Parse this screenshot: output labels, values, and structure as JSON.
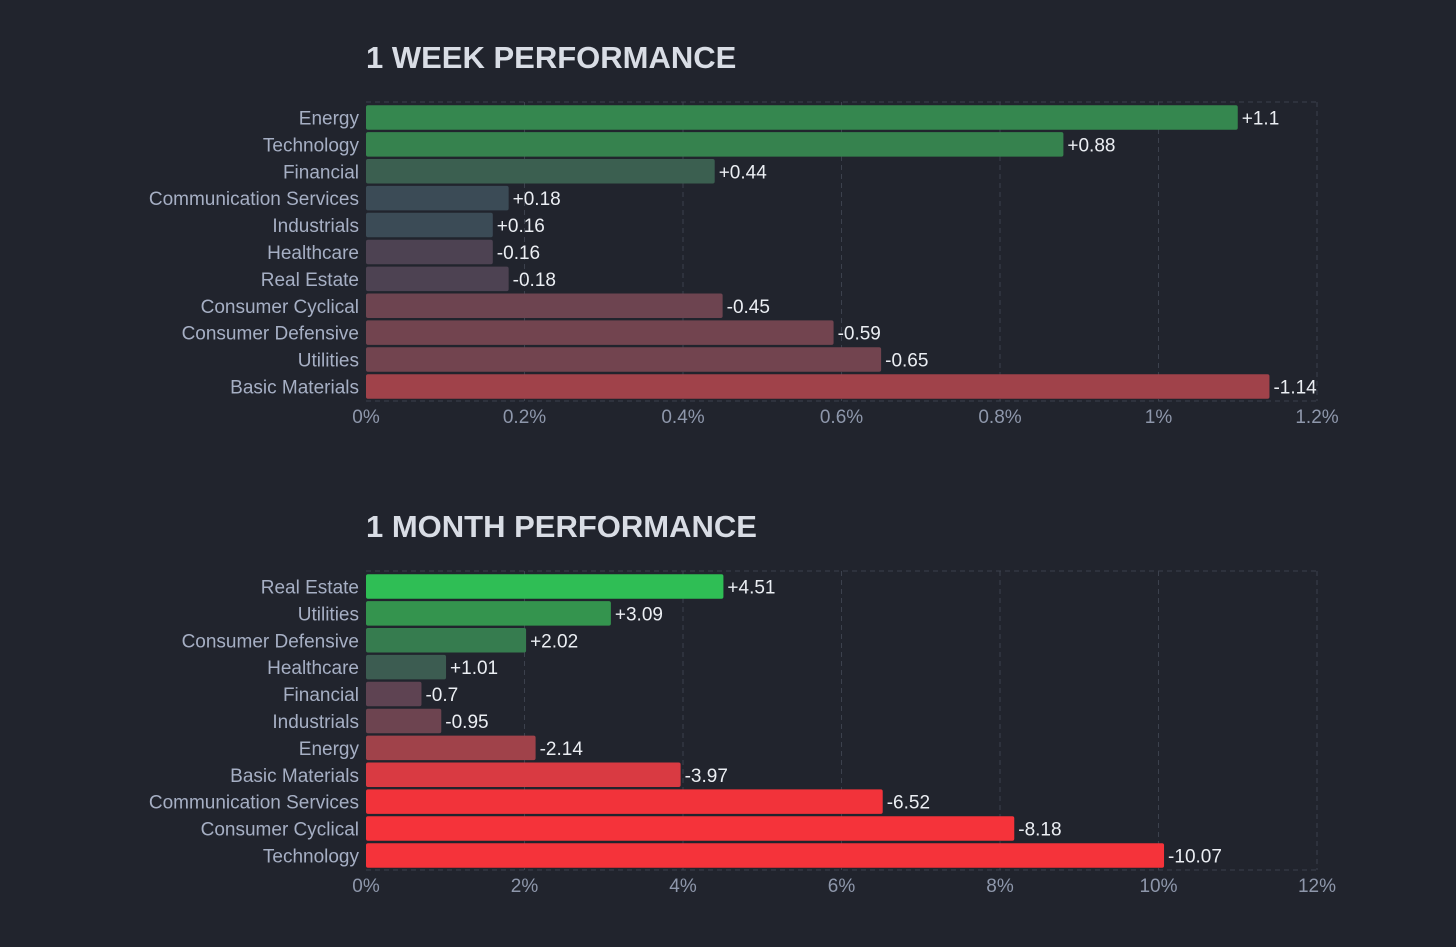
{
  "chart_data": [
    {
      "type": "bar",
      "orientation": "horizontal",
      "title": "1 WEEK PERFORMANCE",
      "categories": [
        "Energy",
        "Technology",
        "Financial",
        "Communication Services",
        "Industrials",
        "Healthcare",
        "Real Estate",
        "Consumer Cyclical",
        "Consumer Defensive",
        "Utilities",
        "Basic Materials"
      ],
      "values": [
        1.1,
        0.88,
        0.44,
        0.18,
        0.16,
        -0.16,
        -0.18,
        -0.45,
        -0.59,
        -0.65,
        -1.14
      ],
      "value_labels": [
        "+1.1",
        "+0.88",
        "+0.44",
        "+0.18",
        "+0.16",
        "-0.16",
        "-0.18",
        "-0.45",
        "-0.59",
        "-0.65",
        "-1.14"
      ],
      "bar_colors": [
        "#35874f",
        "#36824e",
        "#3b5f50",
        "#3b4b56",
        "#3b4b56",
        "#4d4252",
        "#4d4252",
        "#6d4450",
        "#72444f",
        "#72444f",
        "#a0424a"
      ],
      "xlim": [
        0,
        1.2
      ],
      "xticks": [
        "0%",
        "0.2%",
        "0.4%",
        "0.6%",
        "0.8%",
        "1%",
        "1.2%"
      ],
      "grid": true
    },
    {
      "type": "bar",
      "orientation": "horizontal",
      "title": "1 MONTH PERFORMANCE",
      "categories": [
        "Real Estate",
        "Utilities",
        "Consumer Defensive",
        "Healthcare",
        "Financial",
        "Industrials",
        "Energy",
        "Basic Materials",
        "Communication Services",
        "Consumer Cyclical",
        "Technology"
      ],
      "values": [
        4.51,
        3.09,
        2.02,
        1.01,
        -0.7,
        -0.95,
        -2.14,
        -3.97,
        -6.52,
        -8.18,
        -10.07
      ],
      "value_labels": [
        "+4.51",
        "+3.09",
        "+2.02",
        "+1.01",
        "-0.7",
        "-0.95",
        "-2.14",
        "-3.97",
        "-6.52",
        "-8.18",
        "-10.07"
      ],
      "bar_colors": [
        "#2fbe55",
        "#34944e",
        "#367c4f",
        "#3c5c51",
        "#5e4352",
        "#6d4450",
        "#a0424a",
        "#d93a42",
        "#f2333a",
        "#f5333a",
        "#f5333a"
      ],
      "xlim": [
        0,
        12
      ],
      "xticks": [
        "0%",
        "2%",
        "4%",
        "6%",
        "8%",
        "10%",
        "12%"
      ],
      "grid": true
    }
  ]
}
